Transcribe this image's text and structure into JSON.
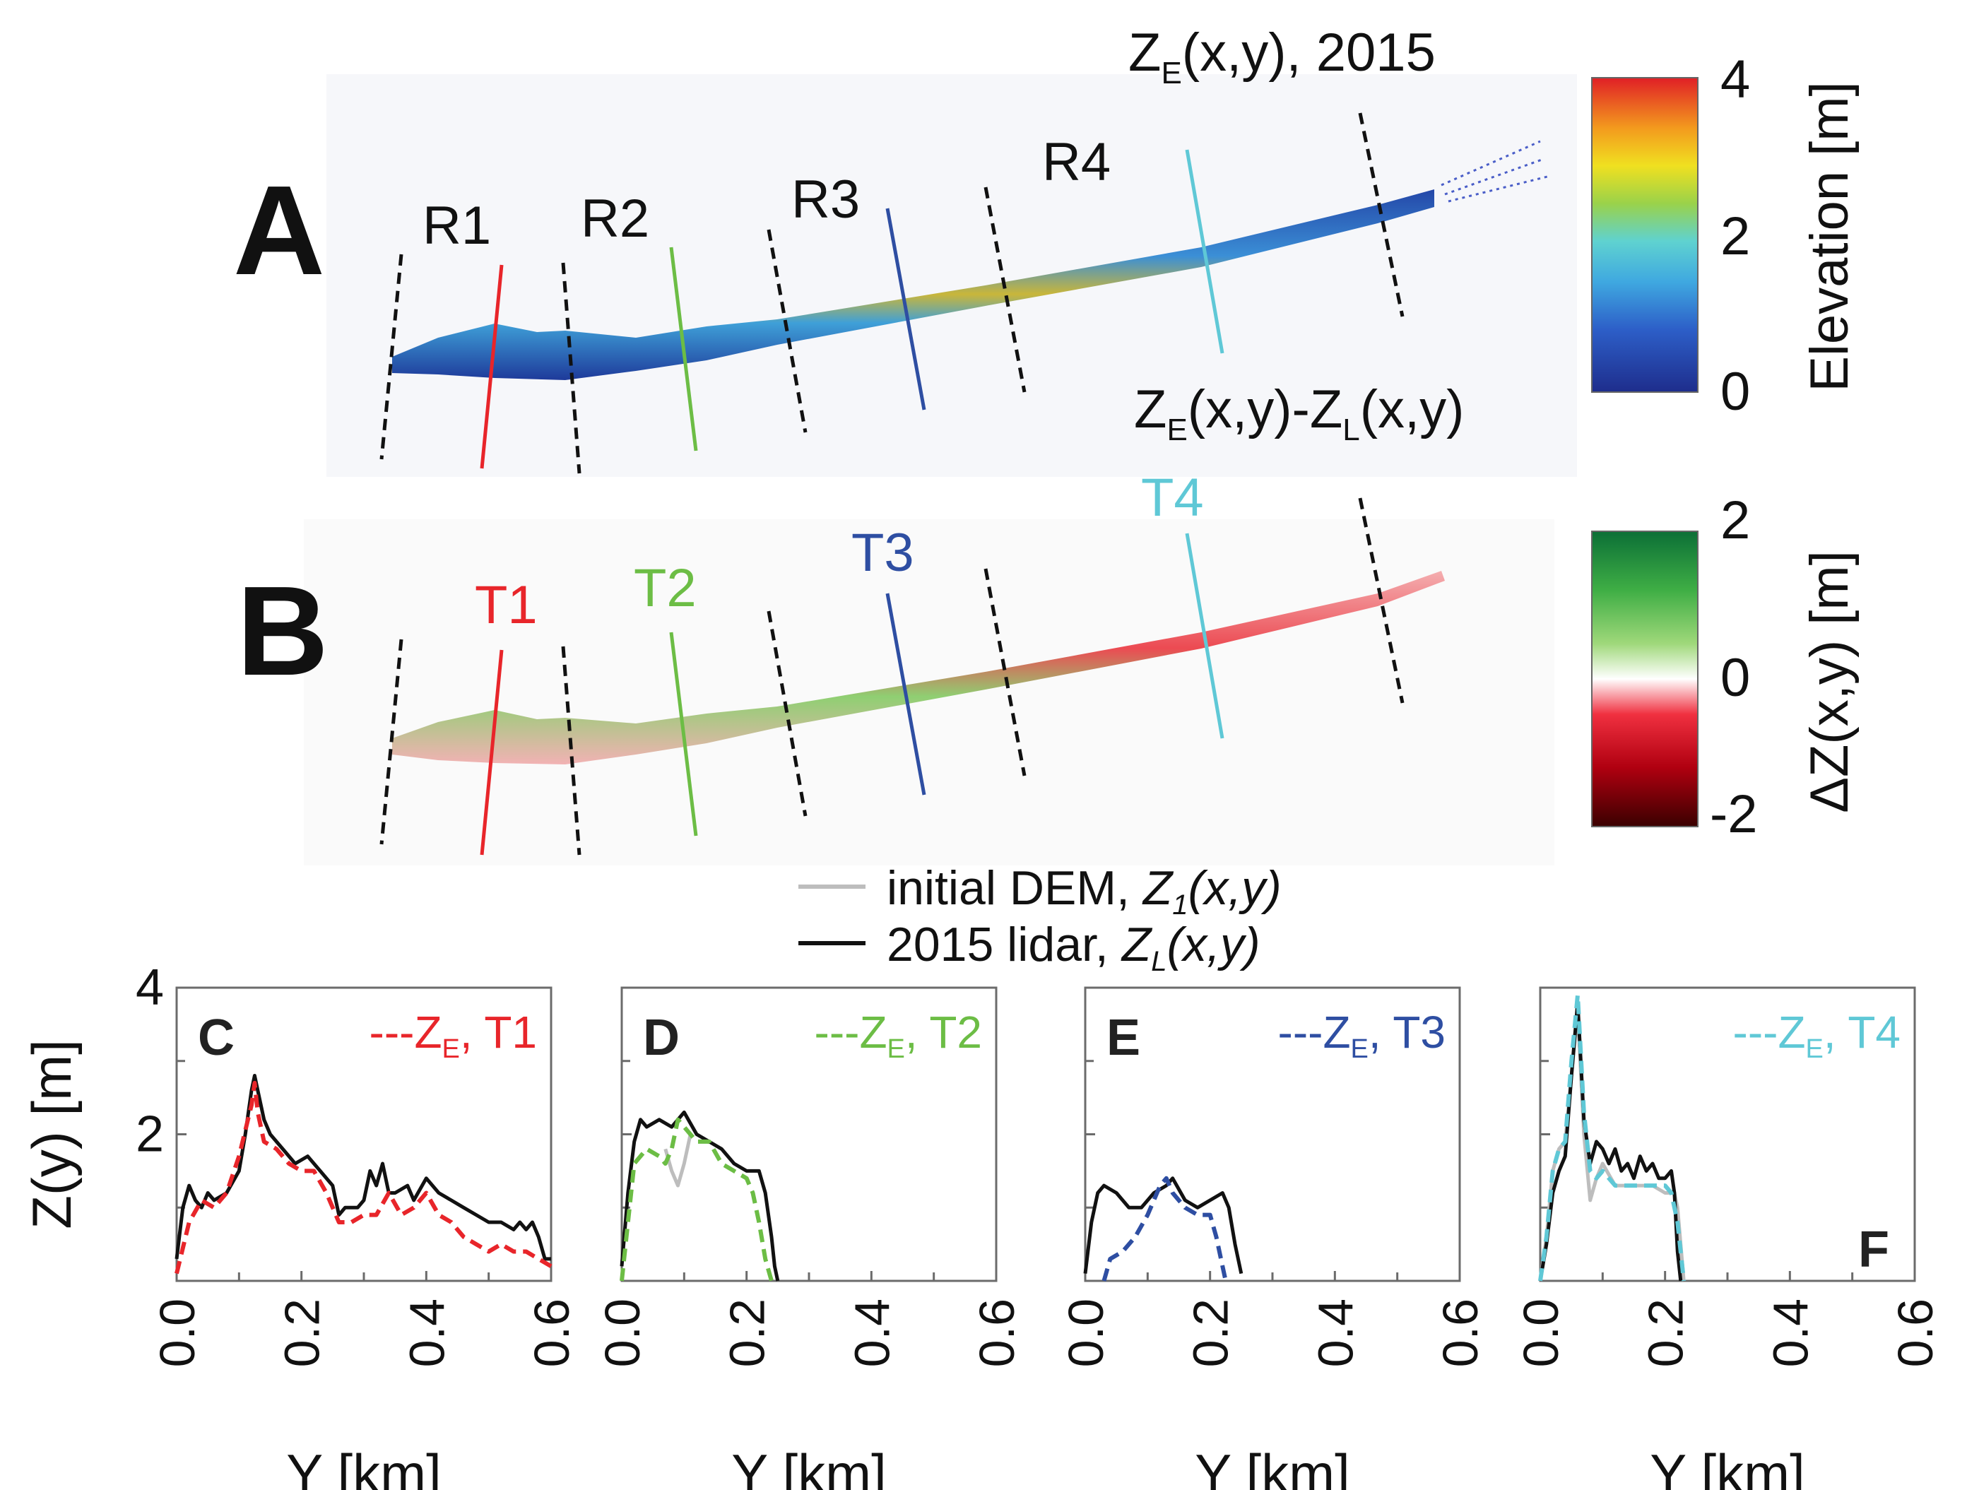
{
  "colors": {
    "t1": "#e8252a",
    "t2": "#6cbd45",
    "t3": "#2e4ea2",
    "t4": "#5fc8d6",
    "dem": "#bdbdbd",
    "lidar": "#111111",
    "section": "#111111"
  },
  "panel_a": {
    "letter": "A",
    "title_base": "Z",
    "title_sub": "E",
    "title_tail": "(x,y), 2015",
    "sections": [
      "R1",
      "R2",
      "R3",
      "R4"
    ],
    "colorbar": {
      "label": "Elevation [m]",
      "ticks": [
        "4",
        "2",
        "0"
      ],
      "min": 0,
      "max": 4
    }
  },
  "panel_b": {
    "letter": "B",
    "title_p1": "Z",
    "title_s1": "E",
    "title_p2": "(x,y)-Z",
    "title_s2": "L",
    "title_p3": "(x,y)",
    "transects": [
      "T1",
      "T2",
      "T3",
      "T4"
    ],
    "colorbar": {
      "label": "ΔZ(x,y) [m]",
      "ticks": [
        "2",
        "0",
        "-2"
      ],
      "min": -2,
      "max": 2
    }
  },
  "legend": {
    "dem_text": "initial DEM, ",
    "dem_math": "Z",
    "dem_sub": "1",
    "dem_tail": "(x,y)",
    "lidar_text": "2015 lidar, ",
    "lidar_math": "Z",
    "lidar_sub": "L",
    "lidar_tail": "(x,y)"
  },
  "chart_data": [
    {
      "type": "line",
      "panel": "C",
      "transect": "T1",
      "legend": {
        "dash": "---",
        "base": "Z",
        "sub": "E",
        "tail": ", T1"
      },
      "xlabel": "Y [km]",
      "ylabel": "Z(y) [m]",
      "xlim": [
        0,
        0.6
      ],
      "ylim": [
        0,
        4
      ],
      "xticks": [
        "0.0",
        "0.2",
        "0.4",
        "0.6"
      ],
      "yticks": [
        "2",
        "4"
      ],
      "series": [
        {
          "name": "2015 lidar",
          "color": "#111111",
          "dash": false,
          "x": [
            0.0,
            0.01,
            0.02,
            0.03,
            0.04,
            0.05,
            0.06,
            0.08,
            0.1,
            0.11,
            0.12,
            0.125,
            0.13,
            0.14,
            0.15,
            0.17,
            0.19,
            0.21,
            0.23,
            0.25,
            0.26,
            0.27,
            0.29,
            0.3,
            0.31,
            0.32,
            0.33,
            0.34,
            0.35,
            0.37,
            0.38,
            0.4,
            0.42,
            0.44,
            0.46,
            0.48,
            0.5,
            0.52,
            0.54,
            0.55,
            0.56,
            0.57,
            0.58,
            0.59,
            0.6
          ],
          "y": [
            0.3,
            1.0,
            1.3,
            1.1,
            1.0,
            1.2,
            1.1,
            1.2,
            1.5,
            2.0,
            2.6,
            2.8,
            2.6,
            2.2,
            2.0,
            1.8,
            1.6,
            1.7,
            1.5,
            1.3,
            0.9,
            1.0,
            1.0,
            1.1,
            1.5,
            1.3,
            1.6,
            1.2,
            1.2,
            1.3,
            1.1,
            1.4,
            1.2,
            1.1,
            1.0,
            0.9,
            0.8,
            0.8,
            0.7,
            0.8,
            0.7,
            0.8,
            0.6,
            0.3,
            0.3
          ]
        },
        {
          "name": "ZE, T1",
          "color": "#e8252a",
          "dash": true,
          "x": [
            0.0,
            0.02,
            0.04,
            0.06,
            0.08,
            0.1,
            0.12,
            0.125,
            0.13,
            0.14,
            0.16,
            0.18,
            0.2,
            0.22,
            0.24,
            0.26,
            0.28,
            0.3,
            0.32,
            0.34,
            0.36,
            0.38,
            0.4,
            0.42,
            0.44,
            0.46,
            0.48,
            0.5,
            0.52,
            0.54,
            0.56,
            0.58,
            0.6
          ],
          "y": [
            0.1,
            0.8,
            1.1,
            1.0,
            1.2,
            1.7,
            2.4,
            2.7,
            2.3,
            1.9,
            1.8,
            1.6,
            1.5,
            1.5,
            1.2,
            0.8,
            0.8,
            0.9,
            0.9,
            1.2,
            0.9,
            1.0,
            1.2,
            0.9,
            0.8,
            0.6,
            0.5,
            0.4,
            0.5,
            0.4,
            0.4,
            0.3,
            0.2
          ]
        }
      ]
    },
    {
      "type": "line",
      "panel": "D",
      "transect": "T2",
      "legend": {
        "dash": "---",
        "base": "Z",
        "sub": "E",
        "tail": ", T2"
      },
      "xlabel": "Y [km]",
      "ylabel": "",
      "xlim": [
        0,
        0.6
      ],
      "ylim": [
        0,
        4
      ],
      "xticks": [
        "0.0",
        "0.2",
        "0.4",
        "0.6"
      ],
      "yticks": [
        "2",
        "4"
      ],
      "series": [
        {
          "name": "initial DEM",
          "color": "#bdbdbd",
          "dash": false,
          "x": [
            0.07,
            0.08,
            0.09,
            0.1,
            0.11
          ],
          "y": [
            1.8,
            1.5,
            1.3,
            1.6,
            2.0
          ]
        },
        {
          "name": "2015 lidar",
          "color": "#111111",
          "dash": false,
          "x": [
            0.0,
            0.01,
            0.02,
            0.03,
            0.04,
            0.06,
            0.08,
            0.1,
            0.12,
            0.14,
            0.16,
            0.18,
            0.2,
            0.22,
            0.23,
            0.24,
            0.245,
            0.25
          ],
          "y": [
            0.2,
            1.2,
            1.9,
            2.2,
            2.1,
            2.2,
            2.1,
            2.3,
            2.0,
            1.9,
            1.8,
            1.6,
            1.5,
            1.5,
            1.2,
            0.6,
            0.2,
            0.0
          ]
        },
        {
          "name": "ZE, T2",
          "color": "#6cbd45",
          "dash": true,
          "x": [
            0.0,
            0.01,
            0.02,
            0.04,
            0.06,
            0.07,
            0.08,
            0.09,
            0.1,
            0.12,
            0.14,
            0.16,
            0.18,
            0.2,
            0.21,
            0.22,
            0.23,
            0.24
          ],
          "y": [
            0.0,
            0.8,
            1.6,
            1.8,
            1.7,
            1.6,
            1.8,
            2.2,
            2.1,
            1.9,
            1.9,
            1.6,
            1.5,
            1.4,
            1.2,
            0.8,
            0.3,
            0.0
          ]
        }
      ]
    },
    {
      "type": "line",
      "panel": "E",
      "transect": "T3",
      "legend": {
        "dash": "---",
        "base": "Z",
        "sub": "E",
        "tail": ", T3"
      },
      "xlabel": "Y [km]",
      "ylabel": "",
      "xlim": [
        0,
        0.6
      ],
      "ylim": [
        0,
        4
      ],
      "xticks": [
        "0.0",
        "0.2",
        "0.4",
        "0.6"
      ],
      "yticks": [
        "2",
        "4"
      ],
      "series": [
        {
          "name": "2015 lidar",
          "color": "#111111",
          "dash": false,
          "x": [
            0.0,
            0.01,
            0.02,
            0.03,
            0.05,
            0.07,
            0.09,
            0.11,
            0.13,
            0.14,
            0.16,
            0.18,
            0.2,
            0.22,
            0.23,
            0.24,
            0.25
          ],
          "y": [
            0.1,
            0.8,
            1.2,
            1.3,
            1.2,
            1.0,
            1.0,
            1.2,
            1.3,
            1.4,
            1.1,
            1.0,
            1.1,
            1.2,
            1.0,
            0.5,
            0.1
          ]
        },
        {
          "name": "ZE, T3",
          "color": "#2e4ea2",
          "dash": true,
          "x": [
            0.03,
            0.04,
            0.06,
            0.08,
            0.1,
            0.12,
            0.13,
            0.14,
            0.16,
            0.18,
            0.2,
            0.21,
            0.22,
            0.225
          ],
          "y": [
            0.0,
            0.3,
            0.4,
            0.6,
            0.9,
            1.3,
            1.4,
            1.2,
            1.0,
            0.9,
            0.9,
            0.6,
            0.2,
            0.0
          ]
        }
      ]
    },
    {
      "type": "line",
      "panel": "F",
      "transect": "T4",
      "legend": {
        "dash": "---",
        "base": "Z",
        "sub": "E",
        "tail": ", T4"
      },
      "xlabel": "Y [km]",
      "ylabel": "",
      "xlim": [
        0,
        0.6
      ],
      "ylim": [
        0,
        4
      ],
      "xticks": [
        "0.0",
        "0.2",
        "0.4",
        "0.6"
      ],
      "yticks": [
        "2",
        "4"
      ],
      "series": [
        {
          "name": "initial DEM",
          "color": "#bdbdbd",
          "dash": false,
          "x": [
            0.0,
            0.01,
            0.02,
            0.03,
            0.04,
            0.05,
            0.06,
            0.07,
            0.08,
            0.09,
            0.1,
            0.12,
            0.14,
            0.16,
            0.18,
            0.2,
            0.21,
            0.215,
            0.22,
            0.23
          ],
          "y": [
            0.0,
            0.6,
            1.5,
            1.8,
            1.9,
            2.8,
            3.7,
            2.0,
            1.1,
            1.4,
            1.6,
            1.3,
            1.3,
            1.3,
            1.3,
            1.2,
            1.2,
            1.2,
            1.0,
            0.0
          ]
        },
        {
          "name": "2015 lidar",
          "color": "#111111",
          "dash": false,
          "x": [
            0.0,
            0.01,
            0.02,
            0.03,
            0.04,
            0.05,
            0.06,
            0.07,
            0.08,
            0.09,
            0.1,
            0.11,
            0.12,
            0.13,
            0.14,
            0.15,
            0.16,
            0.17,
            0.18,
            0.19,
            0.2,
            0.21,
            0.215,
            0.22,
            0.225
          ],
          "y": [
            0.0,
            0.5,
            1.2,
            1.5,
            1.7,
            2.8,
            3.8,
            2.2,
            1.6,
            1.9,
            1.8,
            1.6,
            1.8,
            1.5,
            1.6,
            1.4,
            1.7,
            1.5,
            1.6,
            1.4,
            1.4,
            1.5,
            1.2,
            0.4,
            0.0
          ]
        },
        {
          "name": "ZE, T4",
          "color": "#5fc8d6",
          "dash": true,
          "x": [
            0.0,
            0.01,
            0.02,
            0.03,
            0.04,
            0.05,
            0.06,
            0.07,
            0.08,
            0.09,
            0.1,
            0.12,
            0.14,
            0.16,
            0.18,
            0.2,
            0.21,
            0.22,
            0.23
          ],
          "y": [
            0.0,
            0.6,
            1.5,
            1.8,
            1.9,
            3.0,
            3.9,
            2.3,
            1.5,
            1.4,
            1.5,
            1.3,
            1.3,
            1.3,
            1.3,
            1.3,
            1.2,
            0.8,
            0.0
          ]
        }
      ]
    }
  ]
}
